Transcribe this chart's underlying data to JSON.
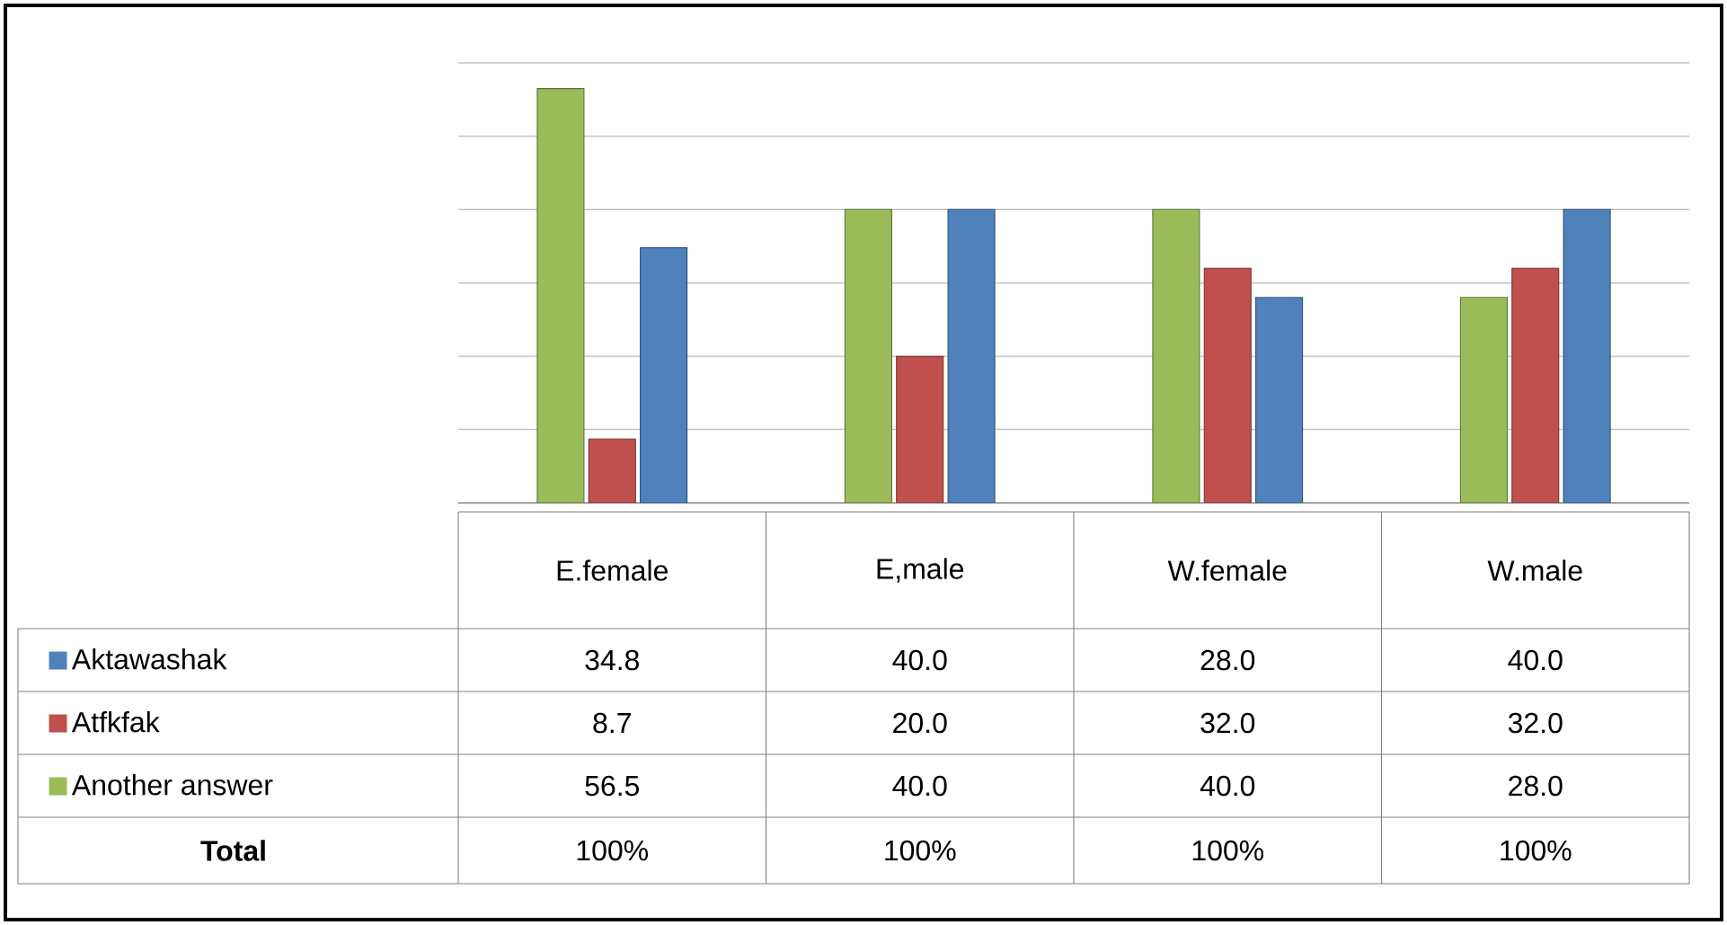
{
  "chart_data": {
    "type": "bar",
    "categories": [
      "E.female",
      "E,male",
      "W.female",
      "W.male"
    ],
    "series": [
      {
        "name": "Another answer",
        "color": "#9bbb59",
        "values": [
          56.5,
          40.0,
          40.0,
          28.0
        ],
        "value_labels": [
          "56.5",
          "40.0",
          "40.0",
          "28.0"
        ]
      },
      {
        "name": "Atfkfak",
        "color": "#c0504d",
        "values": [
          8.7,
          20.0,
          32.0,
          32.0
        ],
        "value_labels": [
          "8.7",
          "20.0",
          "32.0",
          "32.0"
        ]
      },
      {
        "name": "Aktawashak",
        "color": "#4f81bd",
        "values": [
          34.8,
          40.0,
          28.0,
          40.0
        ],
        "value_labels": [
          "34.8",
          "40.0",
          "28.0",
          "40.0"
        ]
      }
    ],
    "annotations": [
      "Total",
      "100%",
      "100%",
      "100%",
      "100%"
    ],
    "ylim": [
      0,
      60
    ],
    "yticks": [
      {
        "value": 0,
        "label": null
      },
      {
        "value": 10,
        "label": null
      },
      {
        "value": 20,
        "label": null
      },
      {
        "value": 30,
        "label": null
      },
      {
        "value": 40,
        "label": null
      },
      {
        "value": 50,
        "label": null
      },
      {
        "value": 60,
        "label": null
      }
    ],
    "grid": "y",
    "tick_labels": "x",
    "legend": "bottom"
  }
}
